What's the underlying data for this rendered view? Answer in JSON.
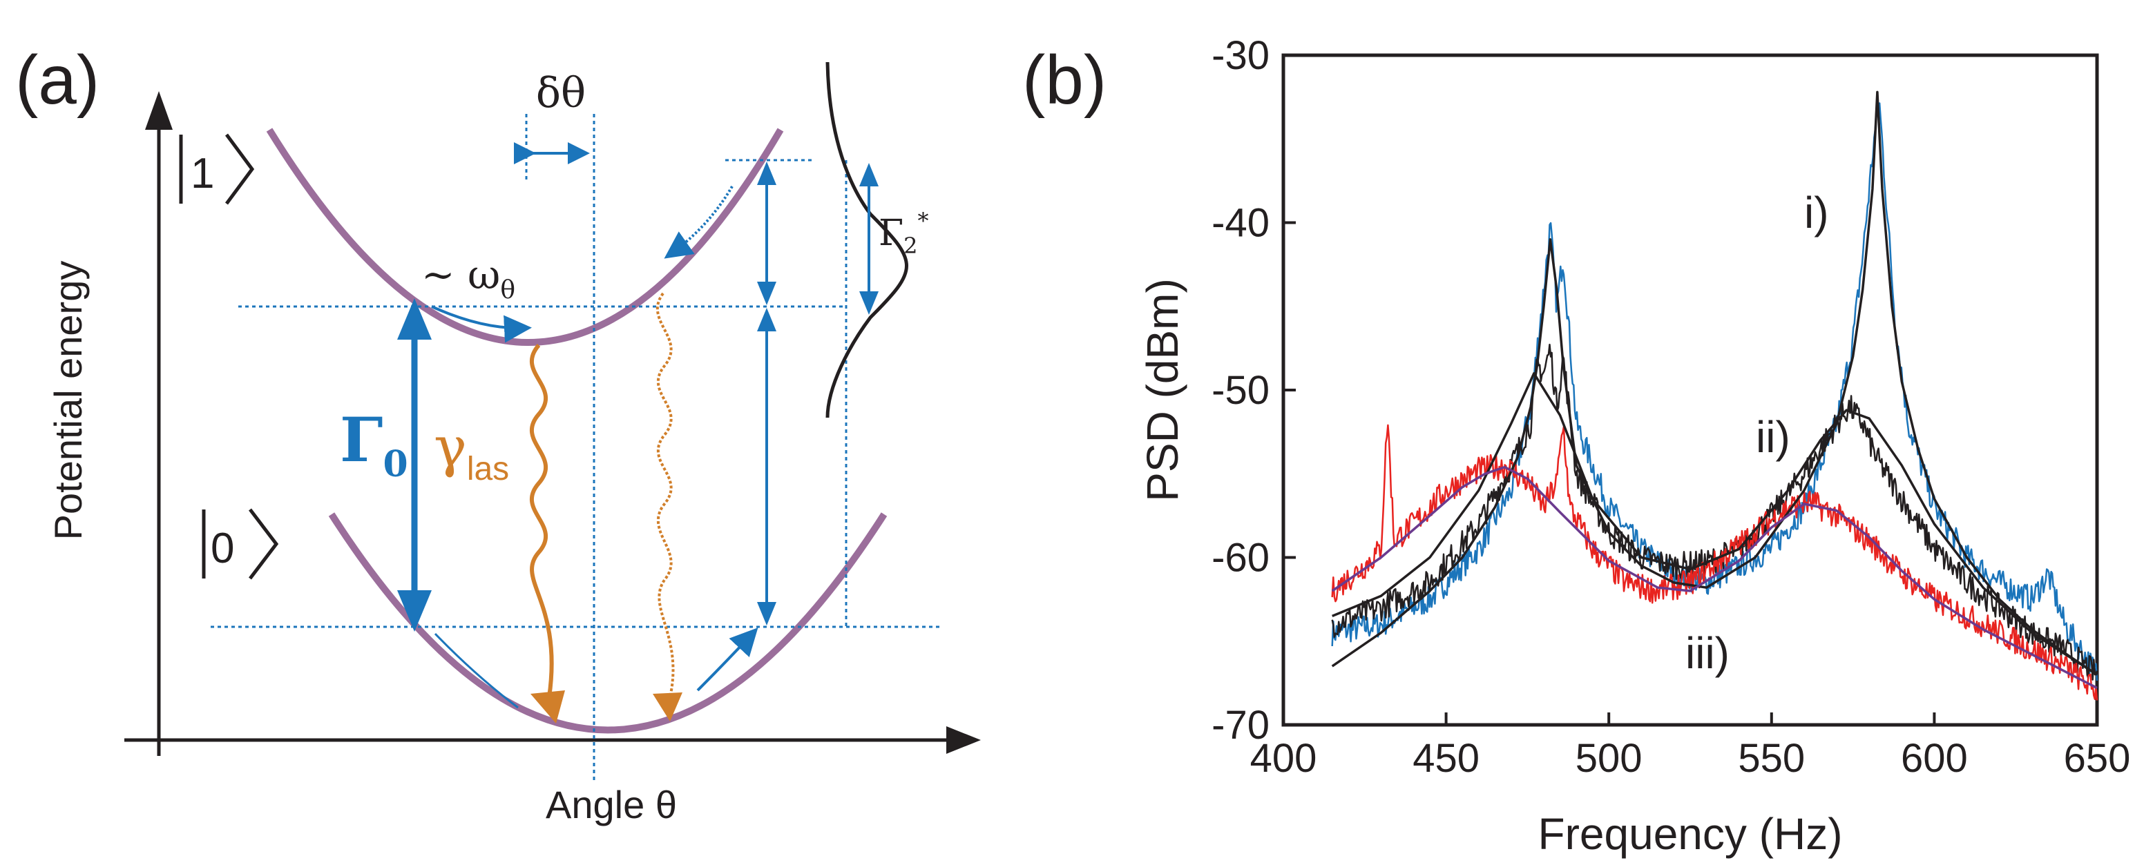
{
  "colors": {
    "parabola": "#9b6e9b",
    "blue": "#1b75bb",
    "orange": "#d17f2a",
    "black": "#231f20",
    "red": "#e8231f",
    "purple_fit": "#6b3a8e"
  },
  "panel_a": {
    "label": "(a)",
    "ylabel": "Potential energy",
    "xlabel": "Angle θ",
    "state_upper": "1",
    "state_lower": "0",
    "delta_theta": "δθ",
    "omega": "~ ω",
    "omega_sub": "θ",
    "gamma0": "Γ",
    "gamma0_sub": "0",
    "gamma_las": "γ",
    "gamma_las_sub": "las",
    "gamma2": "Γ",
    "gamma2_sub": "2",
    "gamma2_sup": "*"
  },
  "panel_b": {
    "label": "(b)",
    "curve_labels": [
      "i)",
      "ii)",
      "iii)"
    ]
  },
  "chart_data": {
    "type": "line",
    "title": "",
    "xlabel": "Frequency (Hz)",
    "ylabel": "PSD (dBm)",
    "xlim": [
      400,
      650
    ],
    "ylim": [
      -70,
      -30
    ],
    "xticks": [
      400,
      450,
      500,
      550,
      600,
      650
    ],
    "yticks": [
      -30,
      -40,
      -50,
      -60,
      -70
    ],
    "grid": false,
    "legend": "none",
    "series": [
      {
        "color": "#1b75bb",
        "style": "noisy",
        "x": [
          415,
          430,
          445,
          460,
          470,
          476,
          480,
          482,
          484,
          486,
          490,
          500,
          510,
          520,
          530,
          540,
          550,
          560,
          570,
          575,
          578,
          581,
          583,
          585,
          588,
          592,
          600,
          610,
          620,
          630,
          635,
          640,
          650
        ],
        "y": [
          -64.5,
          -64,
          -62.5,
          -59.5,
          -56,
          -51,
          -44,
          -40.2,
          -45,
          -42,
          -52,
          -57,
          -59.5,
          -61,
          -61.5,
          -60.5,
          -59.5,
          -57,
          -52,
          -47,
          -42,
          -36,
          -32.5,
          -38,
          -46,
          -52,
          -57,
          -60,
          -61.5,
          -62.5,
          -61,
          -64,
          -67
        ]
      },
      {
        "color": "#231f20",
        "style": "noisy",
        "x": [
          415,
          430,
          445,
          460,
          470,
          476,
          478,
          480,
          482,
          484,
          486,
          490,
          500,
          510,
          520,
          530,
          540,
          550,
          560,
          565,
          570,
          574,
          578,
          582,
          590,
          600,
          610,
          620,
          630,
          640,
          650
        ],
        "y": [
          -64,
          -63,
          -61.5,
          -58,
          -54.5,
          -52,
          -48.5,
          -49,
          -47.5,
          -51,
          -48,
          -55,
          -58.5,
          -60,
          -60.5,
          -60.3,
          -59.5,
          -57.5,
          -55,
          -53.5,
          -52,
          -51,
          -52,
          -54,
          -56.5,
          -59.5,
          -61.5,
          -63,
          -64.5,
          -65.5,
          -67
        ]
      },
      {
        "color": "#e8231f",
        "style": "noisy",
        "x": [
          415,
          425,
          430,
          432,
          434,
          440,
          450,
          460,
          468,
          475,
          480,
          484,
          486,
          488,
          495,
          505,
          515,
          525,
          535,
          545,
          555,
          562,
          570,
          580,
          590,
          600,
          610,
          620,
          630,
          640,
          650
        ],
        "y": [
          -62,
          -60.5,
          -59.5,
          -51.5,
          -59,
          -58,
          -56,
          -54.8,
          -54.5,
          -55.5,
          -57,
          -55.5,
          -52,
          -57,
          -59.5,
          -61.5,
          -62,
          -61.5,
          -60,
          -58.5,
          -57,
          -56.7,
          -57.5,
          -59,
          -61,
          -62.5,
          -63.5,
          -64.5,
          -65.5,
          -66.5,
          -68
        ]
      },
      {
        "color": "#231f20",
        "style": "fit",
        "x": [
          415,
          430,
          445,
          455,
          465,
          472,
          476,
          478,
          480,
          482,
          484,
          486,
          490,
          500,
          510,
          520,
          530,
          545,
          560,
          570,
          575,
          578,
          581,
          582.5,
          584,
          587,
          590,
          595,
          600,
          610,
          620,
          630,
          640,
          650
        ],
        "y": [
          -66.5,
          -64.5,
          -62,
          -60,
          -57,
          -54,
          -51,
          -48.5,
          -45,
          -41,
          -44,
          -48.5,
          -54.5,
          -58.5,
          -60.5,
          -61.5,
          -61.8,
          -60,
          -56,
          -52,
          -48,
          -44,
          -38,
          -32.2,
          -38,
          -45,
          -49.5,
          -53.5,
          -56.5,
          -60,
          -62.5,
          -64.3,
          -65.7,
          -67
        ]
      },
      {
        "color": "#231f20",
        "style": "fit",
        "x": [
          415,
          430,
          445,
          460,
          470,
          477,
          485,
          495,
          510,
          525,
          540,
          555,
          565,
          573,
          580,
          590,
          600,
          615,
          630,
          650
        ],
        "y": [
          -63.5,
          -62.3,
          -60,
          -56,
          -52,
          -49,
          -51.5,
          -56.5,
          -60,
          -60.7,
          -59.5,
          -56,
          -53,
          -51.2,
          -51.7,
          -54.5,
          -58,
          -61.8,
          -64.5,
          -67
        ]
      },
      {
        "color": "#6b3a8e",
        "style": "fit",
        "x": [
          415,
          430,
          445,
          455,
          462,
          468,
          475,
          485,
          500,
          515,
          525,
          540,
          550,
          560,
          570,
          580,
          590,
          600,
          615,
          630,
          650
        ],
        "y": [
          -62,
          -60,
          -57.5,
          -55.8,
          -55,
          -54.6,
          -55.3,
          -57.3,
          -60.2,
          -61.8,
          -62,
          -60.2,
          -58.2,
          -56.8,
          -57.2,
          -58.8,
          -60.8,
          -62.5,
          -64.3,
          -65.8,
          -67.8
        ]
      }
    ]
  }
}
